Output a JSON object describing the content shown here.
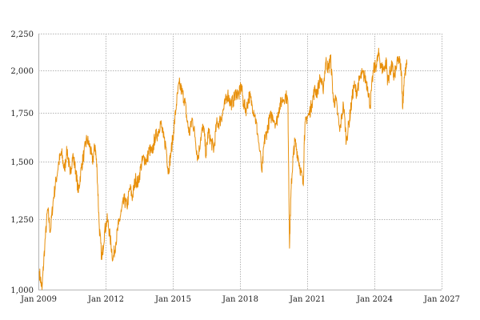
{
  "chart_data": {
    "type": "line",
    "title": "",
    "xlabel": "",
    "ylabel": "",
    "y_scale": "log",
    "xlim": [
      "2009-01-01",
      "2027-01-01"
    ],
    "ylim": [
      1000,
      2250
    ],
    "grid": true,
    "legend": "none",
    "x_ticks": [
      {
        "date": "2009-01-01",
        "label": "Jan 2009"
      },
      {
        "date": "2012-01-01",
        "label": "Jan 2012"
      },
      {
        "date": "2015-01-01",
        "label": "Jan 2015"
      },
      {
        "date": "2018-01-01",
        "label": "Jan 2018"
      },
      {
        "date": "2021-01-01",
        "label": "Jan 2021"
      },
      {
        "date": "2024-01-01",
        "label": "Jan 2024"
      },
      {
        "date": "2027-01-01",
        "label": "Jan 2027"
      }
    ],
    "y_ticks": [
      {
        "value": 1000,
        "label": "1,000"
      },
      {
        "value": 1250,
        "label": "1,250"
      },
      {
        "value": 1500,
        "label": "1,500"
      },
      {
        "value": 1750,
        "label": "1,750"
      },
      {
        "value": 2000,
        "label": "2,000"
      },
      {
        "value": 2250,
        "label": "2,250"
      }
    ],
    "series": [
      {
        "color": "#e8900c",
        "points": [
          [
            "2009-01-15",
            1060
          ],
          [
            "2009-03-01",
            1000
          ],
          [
            "2009-04-15",
            1150
          ],
          [
            "2009-06-01",
            1290
          ],
          [
            "2009-07-15",
            1200
          ],
          [
            "2009-09-01",
            1330
          ],
          [
            "2009-10-15",
            1410
          ],
          [
            "2009-12-01",
            1500
          ],
          [
            "2010-01-15",
            1540
          ],
          [
            "2010-03-01",
            1460
          ],
          [
            "2010-04-15",
            1560
          ],
          [
            "2010-06-01",
            1440
          ],
          [
            "2010-07-15",
            1530
          ],
          [
            "2010-09-01",
            1460
          ],
          [
            "2010-10-15",
            1360
          ],
          [
            "2010-12-01",
            1470
          ],
          [
            "2011-01-15",
            1540
          ],
          [
            "2011-03-01",
            1610
          ],
          [
            "2011-04-15",
            1580
          ],
          [
            "2011-06-01",
            1500
          ],
          [
            "2011-07-15",
            1580
          ],
          [
            "2011-08-15",
            1460
          ],
          [
            "2011-09-20",
            1220
          ],
          [
            "2011-11-01",
            1100
          ],
          [
            "2011-12-15",
            1200
          ],
          [
            "2012-02-01",
            1250
          ],
          [
            "2012-03-15",
            1180
          ],
          [
            "2012-05-01",
            1100
          ],
          [
            "2012-06-15",
            1160
          ],
          [
            "2012-08-01",
            1230
          ],
          [
            "2012-09-15",
            1280
          ],
          [
            "2012-11-01",
            1330
          ],
          [
            "2012-12-15",
            1300
          ],
          [
            "2013-02-01",
            1380
          ],
          [
            "2013-03-15",
            1340
          ],
          [
            "2013-05-01",
            1420
          ],
          [
            "2013-06-15",
            1400
          ],
          [
            "2013-08-01",
            1480
          ],
          [
            "2013-09-15",
            1520
          ],
          [
            "2013-11-01",
            1500
          ],
          [
            "2013-12-15",
            1560
          ],
          [
            "2014-02-01",
            1540
          ],
          [
            "2014-03-15",
            1620
          ],
          [
            "2014-05-01",
            1640
          ],
          [
            "2014-06-15",
            1700
          ],
          [
            "2014-08-01",
            1620
          ],
          [
            "2014-09-15",
            1570
          ],
          [
            "2014-10-20",
            1450
          ],
          [
            "2014-12-01",
            1540
          ],
          [
            "2015-01-15",
            1650
          ],
          [
            "2015-03-01",
            1800
          ],
          [
            "2015-04-15",
            1920
          ],
          [
            "2015-06-01",
            1870
          ],
          [
            "2015-07-15",
            1820
          ],
          [
            "2015-08-25",
            1700
          ],
          [
            "2015-10-01",
            1640
          ],
          [
            "2015-11-15",
            1720
          ],
          [
            "2016-01-01",
            1620
          ],
          [
            "2016-02-15",
            1510
          ],
          [
            "2016-04-01",
            1620
          ],
          [
            "2016-05-15",
            1680
          ],
          [
            "2016-06-27",
            1530
          ],
          [
            "2016-08-01",
            1650
          ],
          [
            "2016-09-15",
            1600
          ],
          [
            "2016-11-01",
            1560
          ],
          [
            "2016-12-15",
            1690
          ],
          [
            "2017-02-01",
            1700
          ],
          [
            "2017-03-15",
            1740
          ],
          [
            "2017-05-01",
            1800
          ],
          [
            "2017-06-15",
            1860
          ],
          [
            "2017-08-01",
            1800
          ],
          [
            "2017-09-15",
            1820
          ],
          [
            "2017-11-01",
            1870
          ],
          [
            "2017-12-15",
            1850
          ],
          [
            "2018-01-20",
            1910
          ],
          [
            "2018-03-01",
            1800
          ],
          [
            "2018-04-15",
            1770
          ],
          [
            "2018-06-01",
            1850
          ],
          [
            "2018-07-15",
            1800
          ],
          [
            "2018-09-01",
            1740
          ],
          [
            "2018-10-15",
            1640
          ],
          [
            "2018-12-27",
            1450
          ],
          [
            "2019-02-01",
            1600
          ],
          [
            "2019-03-15",
            1650
          ],
          [
            "2019-05-01",
            1720
          ],
          [
            "2019-06-15",
            1740
          ],
          [
            "2019-08-15",
            1690
          ],
          [
            "2019-10-01",
            1780
          ],
          [
            "2019-11-15",
            1820
          ],
          [
            "2020-01-15",
            1850
          ],
          [
            "2020-02-20",
            1820
          ],
          [
            "2020-03-18",
            1140
          ],
          [
            "2020-04-15",
            1380
          ],
          [
            "2020-05-15",
            1520
          ],
          [
            "2020-06-15",
            1600
          ],
          [
            "2020-08-01",
            1530
          ],
          [
            "2020-09-15",
            1460
          ],
          [
            "2020-10-30",
            1390
          ],
          [
            "2020-11-15",
            1630
          ],
          [
            "2020-12-15",
            1720
          ],
          [
            "2021-02-01",
            1740
          ],
          [
            "2021-03-15",
            1800
          ],
          [
            "2021-05-01",
            1880
          ],
          [
            "2021-06-15",
            1870
          ],
          [
            "2021-08-01",
            1960
          ],
          [
            "2021-09-15",
            1880
          ],
          [
            "2021-11-01",
            2060
          ],
          [
            "2021-12-15",
            2010
          ],
          [
            "2022-01-15",
            2090
          ],
          [
            "2022-03-07",
            1810
          ],
          [
            "2022-04-15",
            1820
          ],
          [
            "2022-06-15",
            1650
          ],
          [
            "2022-08-15",
            1800
          ],
          [
            "2022-09-30",
            1600
          ],
          [
            "2022-11-15",
            1700
          ],
          [
            "2022-12-15",
            1780
          ],
          [
            "2023-02-01",
            1910
          ],
          [
            "2023-03-15",
            1870
          ],
          [
            "2023-05-01",
            1940
          ],
          [
            "2023-06-15",
            1980
          ],
          [
            "2023-08-01",
            1960
          ],
          [
            "2023-09-15",
            1900
          ],
          [
            "2023-10-25",
            1790
          ],
          [
            "2023-12-15",
            2000
          ],
          [
            "2024-02-01",
            2040
          ],
          [
            "2024-03-15",
            2110
          ],
          [
            "2024-04-20",
            2020
          ],
          [
            "2024-06-01",
            2010
          ],
          [
            "2024-07-15",
            2060
          ],
          [
            "2024-08-05",
            1930
          ],
          [
            "2024-09-15",
            2000
          ],
          [
            "2024-10-15",
            2030
          ],
          [
            "2024-11-15",
            1960
          ],
          [
            "2024-12-15",
            2010
          ],
          [
            "2025-02-01",
            2080
          ],
          [
            "2025-03-15",
            2000
          ],
          [
            "2025-04-08",
            1780
          ],
          [
            "2025-05-01",
            1960
          ],
          [
            "2025-06-15",
            2040
          ]
        ]
      }
    ]
  }
}
